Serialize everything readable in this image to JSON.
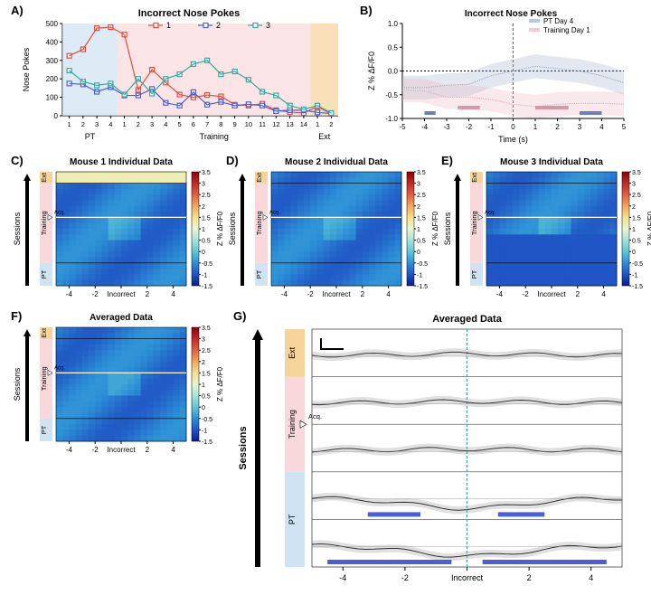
{
  "panel_A": {
    "label": "A)",
    "title": "Incorrect Nose Pokes",
    "title_fontsize": 11,
    "series_labels": [
      "1",
      "2",
      "3"
    ],
    "series_colors": [
      "#e74c3c",
      "#4a5fd6",
      "#3aa89e"
    ],
    "x_sections": [
      {
        "label": "PT",
        "count": 4,
        "bg": "#cfe3f2"
      },
      {
        "label": "Training",
        "count": 14,
        "bg": "#f9d8db"
      },
      {
        "label": "Ext",
        "count": 2,
        "bg": "#f6d39a"
      }
    ],
    "x_tick_labels": [
      "1",
      "2",
      "3",
      "4",
      "1",
      "2",
      "3",
      "4",
      "5",
      "6",
      "7",
      "8",
      "9",
      "10",
      "11",
      "12",
      "13",
      "14",
      "1",
      "2"
    ],
    "ylabel": "Nose Pokes",
    "ylim": [
      0,
      500
    ],
    "yticks": [
      0,
      100,
      200,
      300,
      400,
      500
    ],
    "series1": [
      325,
      360,
      475,
      480,
      440,
      140,
      250,
      180,
      115,
      100,
      112,
      105,
      60,
      55,
      65,
      30,
      20,
      15,
      50,
      10
    ],
    "series2": [
      175,
      170,
      130,
      155,
      110,
      110,
      145,
      70,
      55,
      128,
      60,
      75,
      55,
      62,
      55,
      25,
      30,
      30,
      18,
      12
    ],
    "series3": [
      245,
      185,
      165,
      175,
      115,
      200,
      120,
      200,
      225,
      280,
      300,
      225,
      240,
      195,
      130,
      110,
      55,
      35,
      55,
      15
    ]
  },
  "panel_B": {
    "label": "B)",
    "title": "Incorrect Nose Pokes",
    "title_fontsize": 10,
    "legend": [
      "PT Day 4",
      "Training Day 1"
    ],
    "legend_colors": [
      "#8fa4c2",
      "#e9a6b2"
    ],
    "xlabel": "Time (s)",
    "xlim": [
      -5,
      5
    ],
    "xticks": [
      -5,
      -4,
      -3,
      -2,
      -1,
      0,
      1,
      2,
      3,
      4,
      5
    ],
    "ylabel": "Z % ΔF/F0",
    "ylim": [
      -1.0,
      1.0
    ],
    "yticks": [
      -1.0,
      -0.5,
      0.0,
      0.5,
      1.0
    ],
    "mean_PT": [
      -0.35,
      -0.35,
      -0.3,
      -0.28,
      -0.1,
      0.0,
      0.1,
      0.05,
      0.0,
      -0.1,
      -0.25
    ],
    "mean_TR": [
      -0.4,
      -0.42,
      -0.55,
      -0.55,
      -0.6,
      -0.7,
      -0.75,
      -0.7,
      -0.68,
      -0.68,
      -0.7
    ],
    "sig_bars_PT": [
      [
        -4.0,
        -3.5
      ],
      [
        3.0,
        4.0
      ]
    ],
    "sig_bars_TR": [
      [
        -2.5,
        -1.5
      ],
      [
        1.0,
        2.5
      ]
    ]
  },
  "heatmap_common": {
    "cbar_label": "Z % ΔF/F0",
    "cbar_min": -1.5,
    "cbar_max": 3.5,
    "cbar_ticks": [
      -1.5,
      -1,
      -0.5,
      0,
      0.5,
      1,
      1.5,
      2,
      2.5,
      3,
      3.5
    ],
    "xticks": [
      -4,
      -2,
      "Incorrect",
      2,
      4
    ],
    "xvals": [
      -4,
      -2,
      0,
      2,
      4
    ],
    "n_rows": 20,
    "section_rows": {
      "Ext": [
        0,
        1
      ],
      "Training": [
        2,
        15
      ],
      "PT": [
        16,
        19
      ]
    },
    "section_colors": {
      "Ext": "#f6d39a",
      "Training": "#f9d8db",
      "PT": "#cfe3f2"
    },
    "yarrow_label": "Sessions",
    "acq_label": "Acq."
  },
  "panel_C": {
    "label": "C)",
    "title": "Mouse 1 Individual Data"
  },
  "panel_D": {
    "label": "D)",
    "title": "Mouse 2 Individual Data"
  },
  "panel_E": {
    "label": "E)",
    "title": "Mouse 3 Individual Data"
  },
  "panel_F": {
    "label": "F)",
    "title": "Averaged Data"
  },
  "panel_G": {
    "label": "G)",
    "title": "Averaged Data",
    "yarrow_label": "Sessions",
    "xticks": [
      -4,
      -2,
      "Incorrect",
      2,
      4
    ],
    "section_labels": [
      "Ext",
      "",
      "Training",
      "",
      "PT"
    ],
    "sig_color": "#4a5fd6"
  },
  "colorbar_gradient": [
    "#0b1b8f",
    "#1f55c4",
    "#2d8fd6",
    "#5ec6d6",
    "#a4e3d8",
    "#e8f6d0",
    "#f7e08a",
    "#f2a659",
    "#e06040",
    "#c12a26",
    "#8b0000"
  ]
}
